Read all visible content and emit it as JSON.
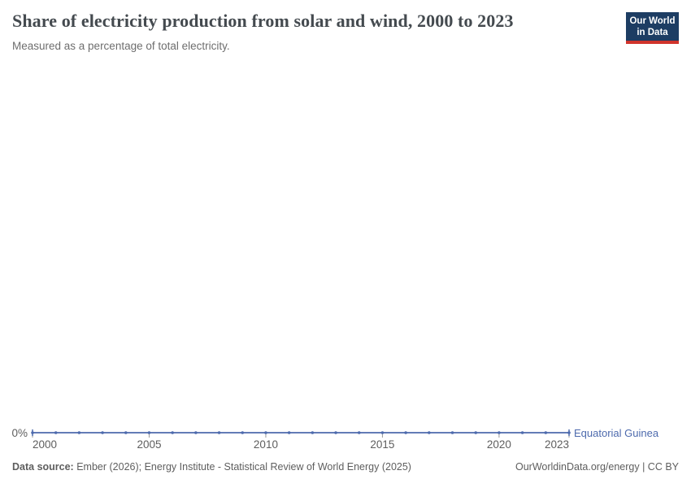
{
  "header": {
    "title": "Share of electricity production from solar and wind, 2000 to 2023",
    "subtitle": "Measured as a percentage of total electricity.",
    "logo": {
      "line1": "Our World",
      "line2": "in Data"
    }
  },
  "chart_data": {
    "type": "line",
    "title": "Share of electricity production from solar and wind, 2000 to 2023",
    "entity": "Equatorial Guinea",
    "x": [
      2000,
      2001,
      2002,
      2003,
      2004,
      2005,
      2006,
      2007,
      2008,
      2009,
      2010,
      2011,
      2012,
      2013,
      2014,
      2015,
      2016,
      2017,
      2018,
      2019,
      2020,
      2021,
      2022,
      2023
    ],
    "series": [
      {
        "name": "Equatorial Guinea",
        "values": [
          0,
          0,
          0,
          0,
          0,
          0,
          0,
          0,
          0,
          0,
          0,
          0,
          0,
          0,
          0,
          0,
          0,
          0,
          0,
          0,
          0,
          0,
          0,
          0
        ]
      }
    ],
    "x_ticks": [
      2000,
      2005,
      2010,
      2015,
      2020,
      2023
    ],
    "y_ticks": [
      {
        "value": 0,
        "label": "0%"
      }
    ],
    "xlim": [
      2000,
      2023
    ],
    "ylim": [
      0,
      100
    ],
    "unit": "%",
    "grid": false,
    "legend_position": "right-of-line-end",
    "line_color": "#4d6aad",
    "marker_color": "#4d6aad",
    "axis_tick_color": "#999999"
  },
  "footer": {
    "data_source_label": "Data source:",
    "data_source_text": " Ember (2026); Energy Institute - Statistical Review of World Energy (2025)",
    "credit": "OurWorldinData.org/energy | CC BY"
  },
  "colors": {
    "accent_blue": "#4d6aad",
    "logo_navy": "#1d3d63",
    "logo_red": "#d0342c",
    "title_text": "#444a4f",
    "muted_text": "#5e5e5e"
  }
}
